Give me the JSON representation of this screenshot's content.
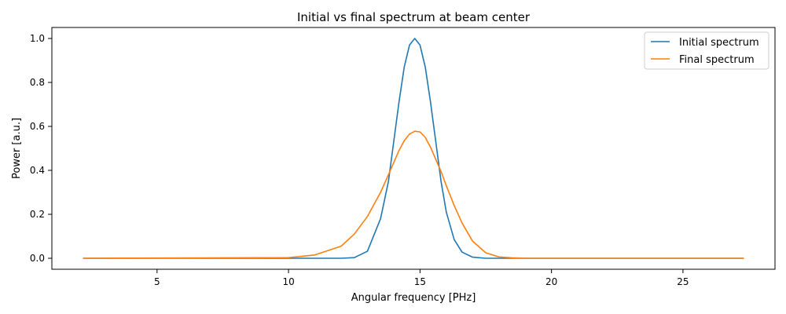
{
  "chart_data": {
    "type": "line",
    "title": "Initial vs final spectrum at beam center",
    "xlabel": "Angular frequency [PHz]",
    "ylabel": "Power [a.u.]",
    "xlim": [
      1.0,
      28.5
    ],
    "ylim": [
      -0.05,
      1.05
    ],
    "xticks": [
      5,
      10,
      15,
      20,
      25
    ],
    "yticks": [
      0.0,
      0.2,
      0.4,
      0.6,
      0.8,
      1.0
    ],
    "xtick_labels": [
      "5",
      "10",
      "15",
      "20",
      "25"
    ],
    "ytick_labels": [
      "0.0",
      "0.2",
      "0.4",
      "0.6",
      "0.8",
      "1.0"
    ],
    "grid": false,
    "legend": "top-right",
    "x": [
      2.2,
      10.0,
      11.0,
      12.0,
      12.5,
      13.0,
      13.5,
      13.8,
      14.0,
      14.2,
      14.4,
      14.6,
      14.8,
      15.0,
      15.2,
      15.4,
      15.6,
      15.8,
      16.0,
      16.3,
      16.6,
      17.0,
      17.5,
      18.0,
      18.5,
      19.0,
      20.0,
      27.3
    ],
    "series": [
      {
        "name": "Initial spectrum",
        "color": "#1f77b4",
        "values": [
          0.0,
          0.0,
          0.0,
          0.0,
          0.003,
          0.032,
          0.18,
          0.35,
          0.53,
          0.71,
          0.87,
          0.97,
          1.0,
          0.97,
          0.87,
          0.71,
          0.53,
          0.35,
          0.21,
          0.085,
          0.028,
          0.005,
          0.0,
          0.0,
          0.0,
          0.0,
          0.0,
          0.0
        ]
      },
      {
        "name": "Final spectrum",
        "color": "#ff7f0e",
        "values": [
          0.0,
          0.003,
          0.015,
          0.055,
          0.11,
          0.19,
          0.3,
          0.38,
          0.435,
          0.49,
          0.535,
          0.565,
          0.578,
          0.575,
          0.55,
          0.505,
          0.45,
          0.395,
          0.33,
          0.24,
          0.16,
          0.078,
          0.025,
          0.006,
          0.002,
          0.0,
          0.0,
          0.0
        ]
      }
    ]
  }
}
